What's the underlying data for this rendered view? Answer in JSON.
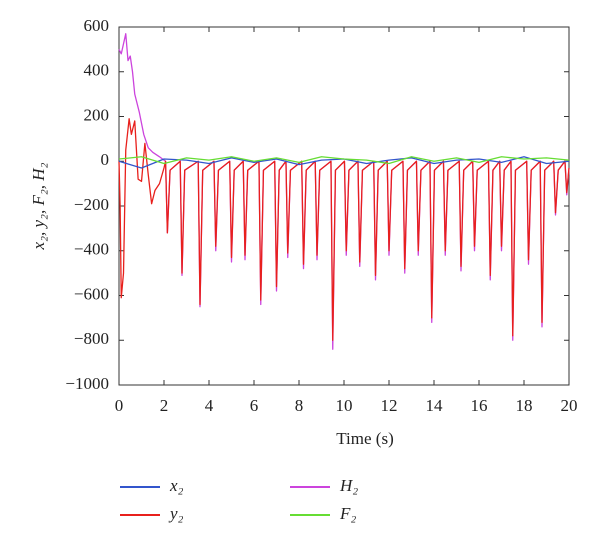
{
  "chart_data": {
    "type": "line",
    "xlabel": "Time (s)",
    "ylabel": "x₂, y₂, F₂, H₂",
    "xlim": [
      0,
      20
    ],
    "xticks": [
      0,
      2,
      4,
      6,
      8,
      10,
      12,
      14,
      16,
      18,
      20
    ],
    "ylim": [
      -1000,
      600
    ],
    "yticks": [
      {
        "value": -1000,
        "label": "−1000"
      },
      {
        "value": -800,
        "label": "−800"
      },
      {
        "value": -600,
        "label": "−600"
      },
      {
        "value": -400,
        "label": "−400"
      },
      {
        "value": -200,
        "label": "−200"
      },
      0,
      200,
      400,
      600
    ],
    "series": [
      {
        "name": "x₂",
        "color": "#3355cc",
        "x": [
          0,
          1,
          2,
          3,
          4,
          5,
          6,
          7,
          8,
          9,
          10,
          11,
          12,
          13,
          14,
          15,
          16,
          17,
          18,
          19,
          20
        ],
        "values": [
          0,
          -30,
          10,
          5,
          -10,
          15,
          -5,
          10,
          -15,
          5,
          10,
          -10,
          5,
          15,
          -10,
          5,
          10,
          -5,
          20,
          -10,
          0
        ]
      },
      {
        "name": "y₂",
        "color": "#e8201c",
        "x": [
          0,
          0.05,
          0.1,
          0.2,
          0.3,
          0.45,
          0.55,
          0.7,
          0.85,
          1.0,
          1.15,
          1.3,
          1.45,
          1.6,
          1.8,
          2.0,
          2.07,
          2.15,
          2.27,
          2.72,
          2.8,
          2.92,
          3.52,
          3.6,
          3.72,
          4.22,
          4.3,
          4.42,
          4.92,
          5.0,
          5.12,
          5.52,
          5.6,
          5.72,
          6.22,
          6.3,
          6.42,
          6.92,
          7.0,
          7.12,
          7.42,
          7.5,
          7.62,
          8.12,
          8.2,
          8.32,
          8.72,
          8.8,
          8.92,
          9.42,
          9.5,
          9.62,
          10.02,
          10.1,
          10.22,
          10.62,
          10.7,
          10.82,
          11.32,
          11.4,
          11.52,
          11.92,
          12.0,
          12.12,
          12.62,
          12.7,
          12.82,
          13.22,
          13.3,
          13.42,
          13.82,
          13.9,
          14.02,
          14.42,
          14.5,
          14.62,
          15.12,
          15.2,
          15.32,
          15.72,
          15.8,
          15.92,
          16.42,
          16.5,
          16.62,
          16.92,
          17.0,
          17.12,
          17.42,
          17.5,
          17.62,
          18.12,
          18.2,
          18.32,
          18.72,
          18.8,
          18.92,
          19.32,
          19.4,
          19.52,
          19.82,
          19.9,
          20.0
        ],
        "values": [
          0,
          -200,
          -610,
          -500,
          50,
          190,
          120,
          180,
          -80,
          -90,
          80,
          -60,
          -190,
          -130,
          -100,
          -30,
          0,
          -320,
          -40,
          0,
          -500,
          -40,
          0,
          -640,
          -40,
          0,
          -380,
          -40,
          0,
          -430,
          -40,
          0,
          -420,
          -40,
          0,
          -620,
          -40,
          0,
          -560,
          -40,
          0,
          -410,
          -40,
          0,
          -460,
          -40,
          0,
          -420,
          -40,
          0,
          -800,
          -40,
          0,
          -400,
          -40,
          0,
          -450,
          -40,
          0,
          -510,
          -40,
          0,
          -400,
          -40,
          0,
          -480,
          -40,
          0,
          -400,
          -40,
          0,
          -700,
          -40,
          0,
          -400,
          -40,
          0,
          -470,
          -40,
          0,
          -380,
          -40,
          0,
          -510,
          -40,
          0,
          -380,
          -40,
          0,
          -780,
          -40,
          0,
          -440,
          -40,
          0,
          -720,
          -40,
          0,
          -230,
          -40,
          0,
          -140,
          -30
        ]
      },
      {
        "name": "H₂",
        "color": "#cc44dd",
        "x": [
          0,
          0.1,
          0.3,
          0.4,
          0.5,
          0.6,
          0.7,
          0.9,
          1.1,
          1.3,
          1.5,
          1.8,
          2.0,
          2.07,
          2.15,
          2.27,
          2.72,
          2.8,
          2.92,
          3.52,
          3.6,
          3.72,
          4.22,
          4.3,
          4.42,
          4.92,
          5.0,
          5.12,
          5.52,
          5.6,
          5.72,
          6.22,
          6.3,
          6.42,
          6.92,
          7.0,
          7.12,
          7.42,
          7.5,
          7.62,
          8.12,
          8.2,
          8.32,
          8.72,
          8.8,
          8.92,
          9.42,
          9.5,
          9.62,
          10.02,
          10.1,
          10.22,
          10.62,
          10.7,
          10.82,
          11.32,
          11.4,
          11.52,
          11.92,
          12.0,
          12.12,
          12.62,
          12.7,
          12.82,
          13.22,
          13.3,
          13.42,
          13.82,
          13.9,
          14.02,
          14.42,
          14.5,
          14.62,
          15.12,
          15.2,
          15.32,
          15.72,
          15.8,
          15.92,
          16.42,
          16.5,
          16.62,
          16.92,
          17.0,
          17.12,
          17.42,
          17.5,
          17.62,
          18.12,
          18.2,
          18.32,
          18.72,
          18.8,
          18.92,
          19.32,
          19.4,
          19.52,
          19.82,
          19.9,
          20.0
        ],
        "values": [
          500,
          480,
          570,
          450,
          470,
          400,
          300,
          220,
          120,
          60,
          40,
          20,
          5,
          0,
          -320,
          -40,
          0,
          -510,
          -40,
          0,
          -650,
          -40,
          0,
          -400,
          -40,
          0,
          -450,
          -40,
          0,
          -440,
          -40,
          0,
          -640,
          -40,
          0,
          -580,
          -40,
          0,
          -430,
          -40,
          0,
          -480,
          -40,
          0,
          -440,
          -40,
          0,
          -840,
          -40,
          0,
          -420,
          -40,
          0,
          -470,
          -40,
          0,
          -530,
          -40,
          0,
          -420,
          -40,
          0,
          -500,
          -40,
          0,
          -420,
          -40,
          0,
          -720,
          -40,
          0,
          -420,
          -40,
          0,
          -490,
          -40,
          0,
          -400,
          -40,
          0,
          -530,
          -40,
          0,
          -400,
          -40,
          0,
          -800,
          -40,
          0,
          -460,
          -40,
          0,
          -740,
          -40,
          0,
          -240,
          -40,
          0,
          -150,
          -30
        ]
      },
      {
        "name": "F₂",
        "color": "#66dd33",
        "x": [
          0,
          1,
          2,
          3,
          4,
          5,
          6,
          7,
          8,
          9,
          10,
          11,
          12,
          13,
          14,
          15,
          16,
          17,
          18,
          19,
          20
        ],
        "values": [
          10,
          20,
          -10,
          15,
          5,
          20,
          0,
          15,
          -5,
          20,
          10,
          5,
          -10,
          20,
          0,
          15,
          -5,
          20,
          10,
          15,
          5
        ]
      }
    ]
  }
}
